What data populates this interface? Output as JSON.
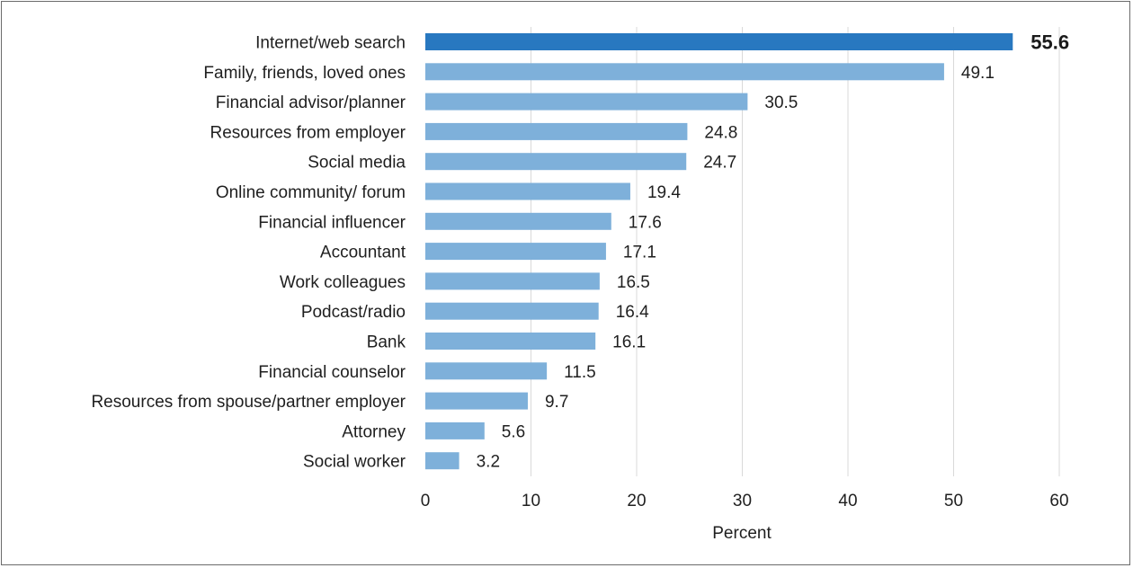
{
  "chart_data": {
    "type": "bar",
    "orientation": "horizontal",
    "categories": [
      "Internet/web search",
      "Family, friends, loved ones",
      "Financial advisor/planner",
      "Resources from employer",
      "Social media",
      "Online community/ forum",
      "Financial influencer",
      "Accountant",
      "Work colleagues",
      "Podcast/radio",
      "Bank",
      "Financial counselor",
      "Resources from spouse/partner employer",
      "Attorney",
      "Social worker"
    ],
    "values": [
      55.6,
      49.1,
      30.5,
      24.8,
      24.7,
      19.4,
      17.6,
      17.1,
      16.5,
      16.4,
      16.1,
      11.5,
      9.7,
      5.6,
      3.2
    ],
    "value_labels": [
      "55.6",
      "49.1",
      "30.5",
      "24.8",
      "24.7",
      "19.4",
      "17.6",
      "17.1",
      "16.5",
      "16.4",
      "16.1",
      "11.5",
      "9.7",
      "5.6",
      "3.2"
    ],
    "highlight_index": 0,
    "xlabel": "Percent",
    "xlim": [
      0,
      60
    ],
    "xticks": [
      "0",
      "10",
      "20",
      "30",
      "40",
      "50",
      "60"
    ],
    "grid": "vertical",
    "colors": {
      "bar": "#7eb0da",
      "highlight": "#2878c0",
      "grid": "#d9d9d9"
    }
  }
}
